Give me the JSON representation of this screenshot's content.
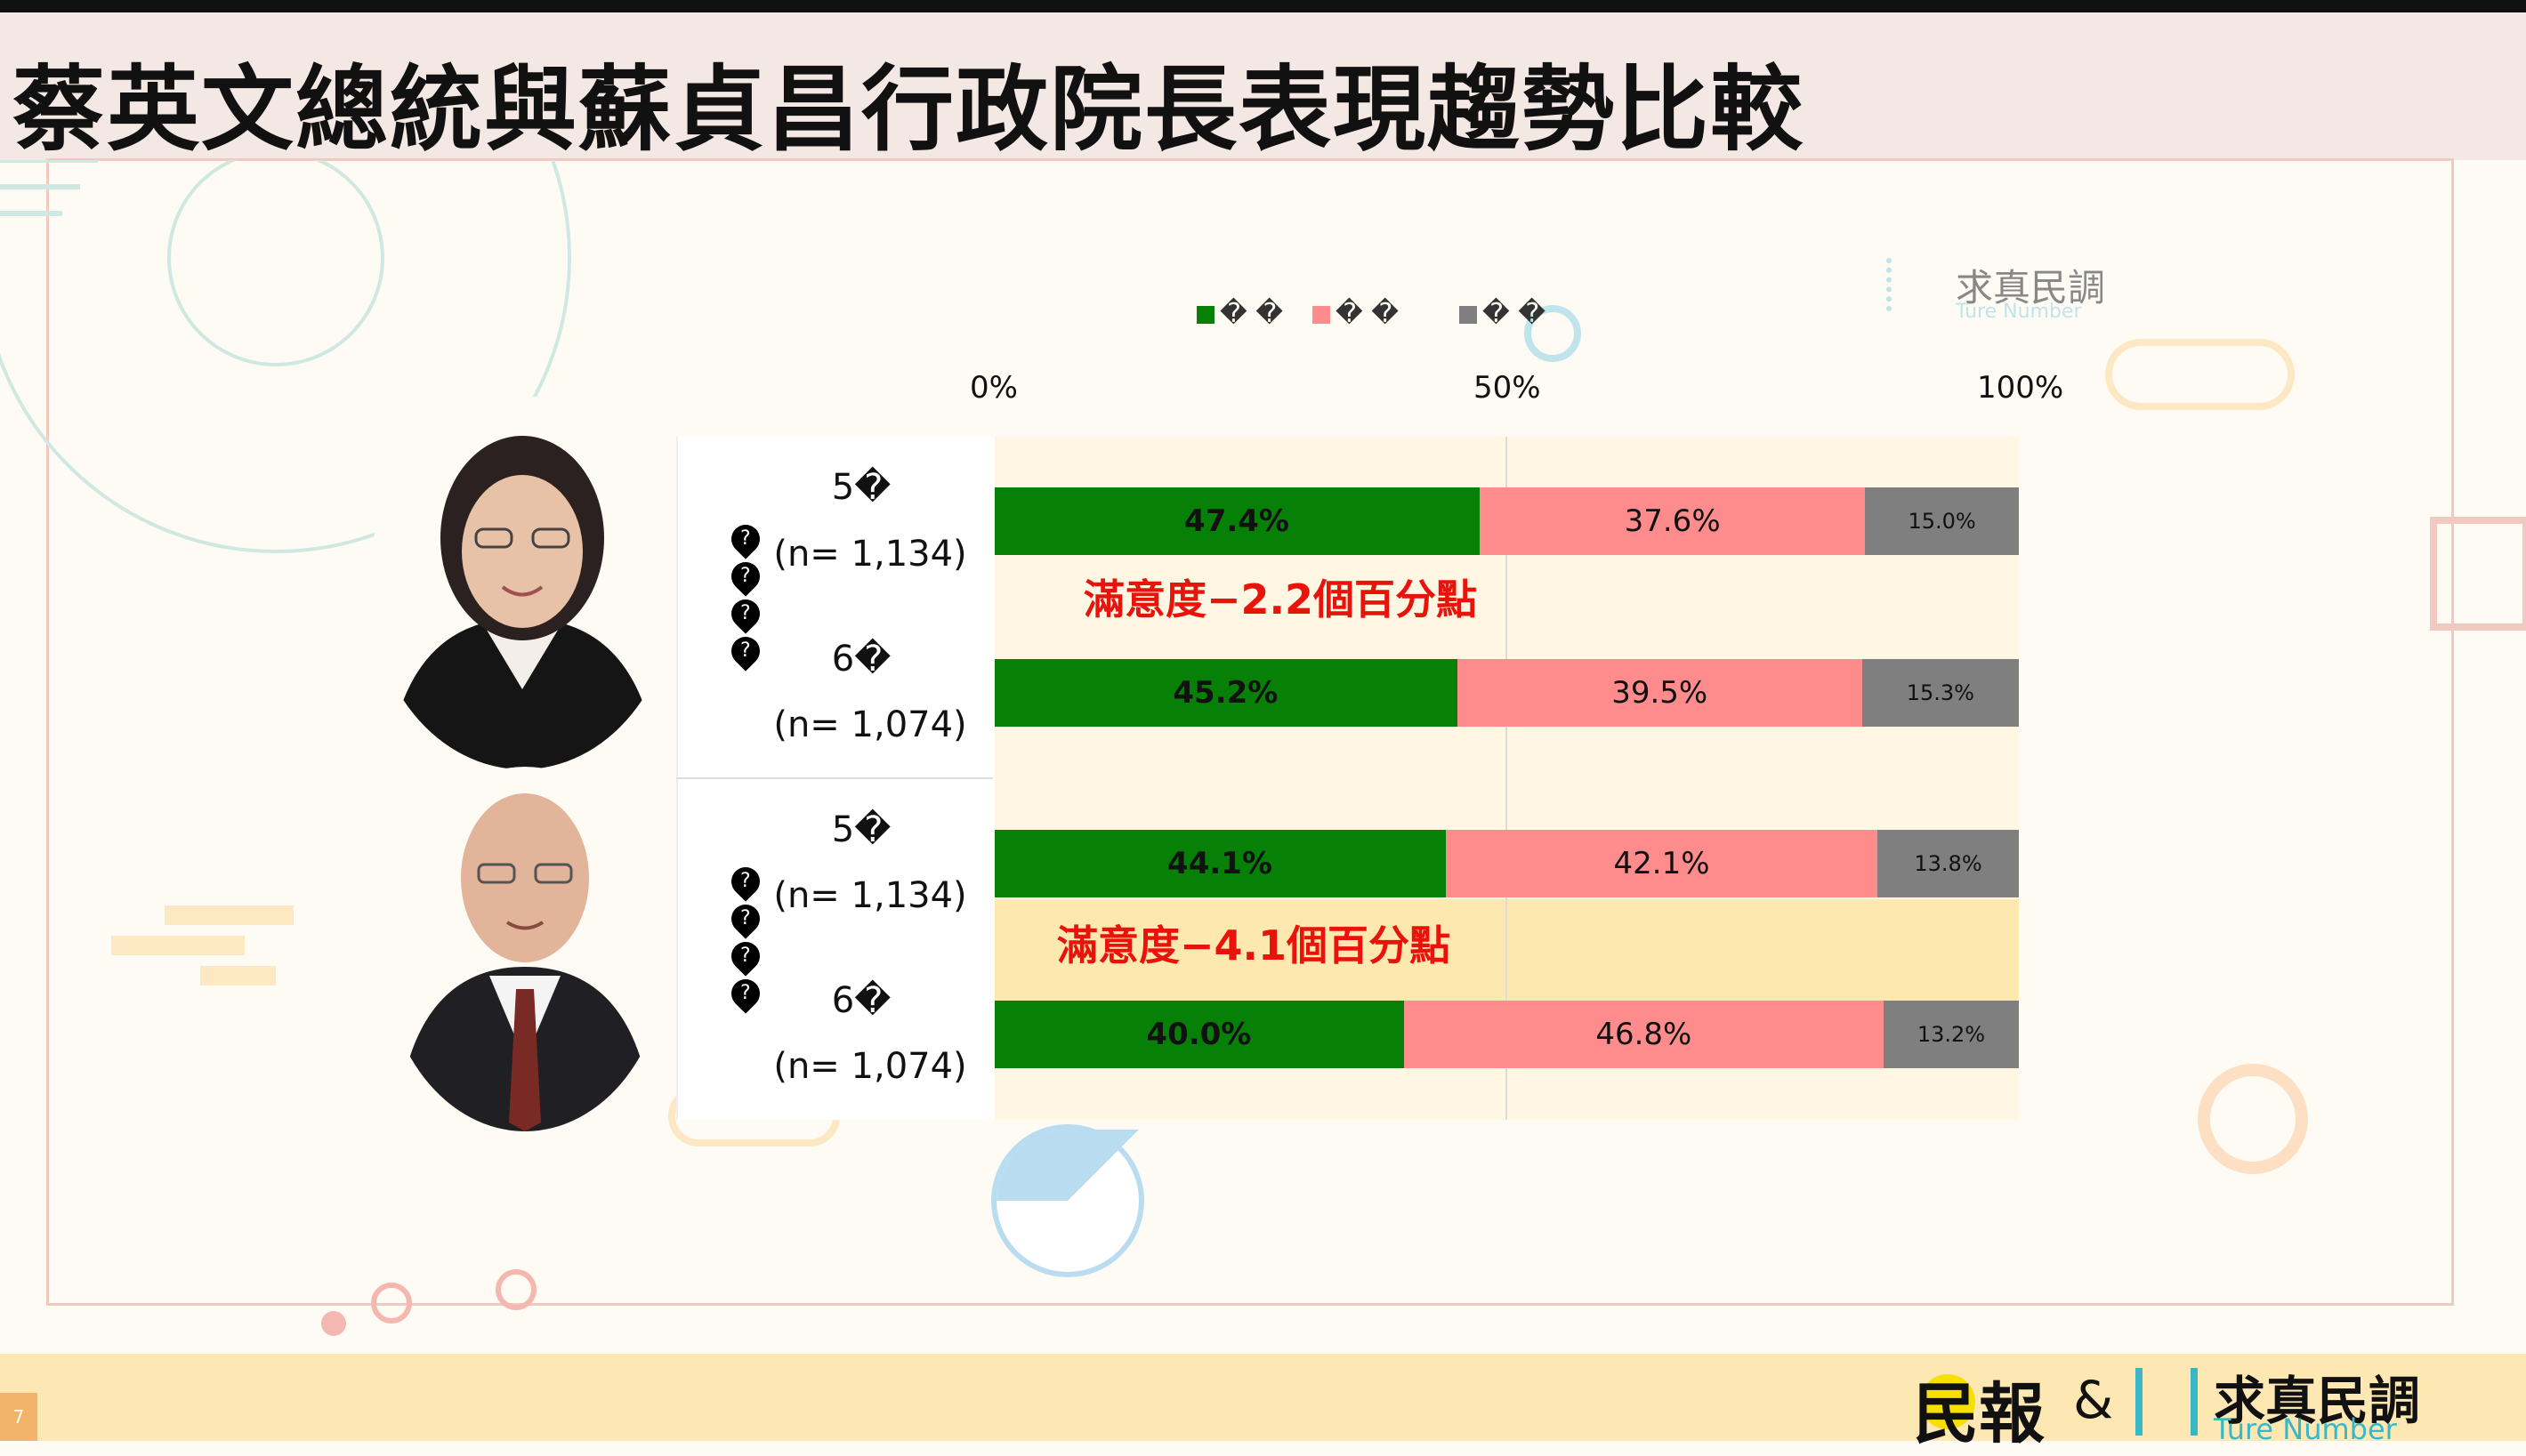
{
  "title": "蔡英文總統與蘇貞昌行政院長表現趨勢比較",
  "page_number": "7",
  "footer": {
    "logo_left": "民報",
    "ampersand": "&",
    "logo_right_cn": "求真民調",
    "logo_right_en": "Ture  Number"
  },
  "watermark": {
    "cn": "求真民調",
    "en": "Ture  Number"
  },
  "colors": {
    "satisfied": "#068006",
    "unsatisfied": "#fe8c8c",
    "no_answer": "#7f7f7f",
    "annotation": "#e8140c",
    "band": "#fde9b0"
  },
  "persons": [
    {
      "portrait": "tsai-portrait"
    },
    {
      "portrait": "su-portrait"
    }
  ],
  "chart_data": {
    "type": "bar",
    "stacked": true,
    "orientation": "horizontal",
    "xlim": [
      0,
      100
    ],
    "x_ticks": [
      "0%",
      "50%",
      "100%"
    ],
    "legend": {
      "position": "top",
      "entries": [
        "� �",
        "� �",
        "� �"
      ]
    },
    "categories": [
      {
        "line1": "5�",
        "line2": "(n= 1,134)"
      },
      {
        "line1": "6�",
        "line2": "(n= 1,074)"
      },
      {
        "line1": "5�",
        "line2": "(n= 1,134)"
      },
      {
        "line1": "6�",
        "line2": "(n= 1,074)"
      }
    ],
    "series": [
      {
        "values": [
          47.4,
          45.2,
          44.1,
          40.0
        ],
        "labels": [
          "47.4%",
          "45.2%",
          "44.1%",
          "40.0%"
        ]
      },
      {
        "values": [
          37.6,
          39.5,
          42.1,
          46.8
        ],
        "labels": [
          "37.6%",
          "39.5%",
          "42.1%",
          "46.8%"
        ]
      },
      {
        "values": [
          15.0,
          15.3,
          13.8,
          13.2
        ],
        "labels": [
          "15.0%",
          "15.3%",
          "13.8%",
          "13.2%"
        ]
      }
    ],
    "annotations": [
      "滿意度−2.2個百分點",
      "滿意度−4.1個百分點"
    ]
  }
}
